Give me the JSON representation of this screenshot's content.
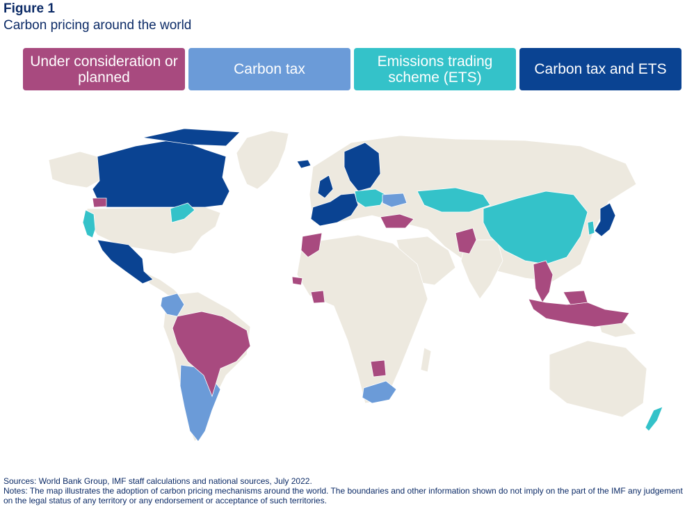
{
  "figure": {
    "label": "Figure 1",
    "title": "Carbon pricing around the world"
  },
  "legend": {
    "items": [
      {
        "label": "Under consideration or planned",
        "color": "#a84a7f"
      },
      {
        "label": "Carbon tax",
        "color": "#6b9bd8"
      },
      {
        "label": "Emissions trading scheme (ETS)",
        "color": "#34c2c9"
      },
      {
        "label": "Carbon tax and ETS",
        "color": "#0a4392"
      }
    ]
  },
  "map": {
    "background_land_color": "#ede9df",
    "regions": {
      "under_consideration": [
        "Brazil",
        "Türkiye",
        "Pakistan",
        "Indonesia",
        "Malaysia",
        "Thailand",
        "Vietnam",
        "Morocco",
        "Senegal",
        "Côte d'Ivoire",
        "Botswana",
        "Chile (central)",
        "Washington State"
      ],
      "carbon_tax": [
        "Colombia",
        "Argentina",
        "South Africa",
        "Ukraine",
        "Chile"
      ],
      "ets": [
        "China",
        "Kazakhstan",
        "California",
        "New Zealand",
        "Republic of Korea",
        "US Northeast (RGGI)"
      ],
      "tax_and_ets": [
        "Canada",
        "Mexico",
        "Japan",
        "Nordic countries",
        "Western Europe",
        "United Kingdom",
        "Iceland"
      ]
    }
  },
  "footer": {
    "sources": "Sources: World Bank Group, IMF staff calculations and national sources, July 2022.",
    "notes": "Notes: The map illustrates the adoption of carbon pricing mechanisms around the world. The boundaries and other information shown do not imply on the part of the IMF any judgement on the legal status of any territory or any endorsement or acceptance of such territories."
  }
}
